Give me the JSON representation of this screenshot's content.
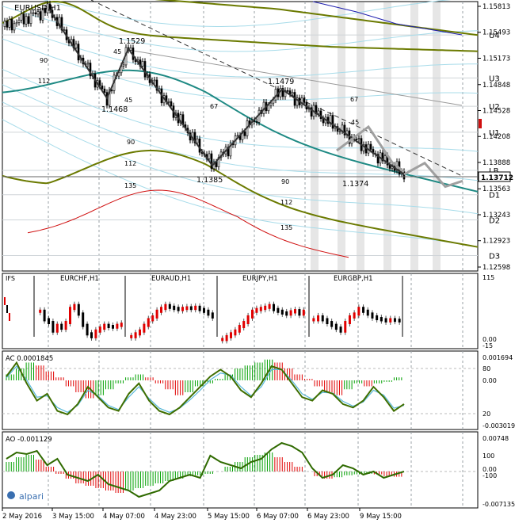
{
  "window": {
    "symbol_label": "EURUSD,H1",
    "brand": "alpari"
  },
  "colors": {
    "bull": "#00a000",
    "bear": "#e00000",
    "axis": "#000000",
    "grid": "#9aa0a6",
    "olive": "#6b7a00",
    "teal": "#1f8a84",
    "navy": "#2020b0",
    "red": "#d01010",
    "fan": "#a8dcea",
    "ghost": "#a0a0a0",
    "bandShade": "#e6e6e6"
  },
  "chart_data": [
    {
      "type": "line",
      "title": "EURUSD,H1",
      "ylim": [
        1.12598,
        1.15813
      ],
      "price_ticks": [
        "1.15813",
        "1.15493",
        "1.15173",
        "1.14848",
        "1.14528",
        "1.14208",
        "1.13888",
        "1.13563",
        "1.13243",
        "1.12923",
        "1.12598"
      ],
      "current_price": "1.13712",
      "level_labels": [
        {
          "label": "U4",
          "price": 1.1546
        },
        {
          "label": "U3",
          "price": 1.1493
        },
        {
          "label": "U2",
          "price": 1.1458
        },
        {
          "label": "U1",
          "price": 1.1426
        },
        {
          "label": "LB",
          "price": 1.1379
        },
        {
          "label": "D1",
          "price": 1.1349
        },
        {
          "label": "D2",
          "price": 1.1318
        },
        {
          "label": "D3",
          "price": 1.1274
        }
      ],
      "extremes": [
        {
          "label": "1.1529",
          "price": 1.1529
        },
        {
          "label": "1.1468",
          "price": 1.1468
        },
        {
          "label": "1.1479",
          "price": 1.1479
        },
        {
          "label": "1.1385",
          "price": 1.1385
        },
        {
          "label": "1.1374",
          "price": 1.1374
        }
      ],
      "fan_labels": [
        "90",
        "112",
        "45",
        "45",
        "67",
        "90",
        "112",
        "135",
        "67",
        "45",
        "90",
        "112",
        "135"
      ],
      "x_ticks": [
        "2 May 2016",
        "3 May 15:00",
        "4 May 07:00",
        "4 May 23:00",
        "5 May 15:00",
        "6 May 07:00",
        "6 May 23:00",
        "9 May 15:00"
      ],
      "zigzag": [
        1.1578,
        1.1468,
        1.1529,
        1.1385,
        1.1479,
        1.1374
      ],
      "projection": [
        1.1374,
        1.1388,
        1.1359,
        1.1366
      ]
    },
    {
      "type": "bar",
      "title": "IFS",
      "ylim": [
        0,
        115
      ],
      "ticks": [
        "115",
        "0.00",
        "-15"
      ],
      "panels": [
        {
          "name": "EURCHF,H1",
          "closes": [
            55,
            40,
            35,
            20,
            30,
            25,
            35,
            60,
            65,
            50,
            30,
            15,
            10,
            20,
            25,
            30,
            28,
            27,
            30,
            32
          ]
        },
        {
          "name": "EURAUD,H1",
          "closes": [
            10,
            15,
            20,
            30,
            40,
            45,
            55,
            60,
            65,
            62,
            60,
            58,
            60,
            61,
            60,
            62,
            58,
            55,
            50,
            45
          ]
        },
        {
          "name": "EURJPY,H1",
          "closes": [
            5,
            10,
            15,
            20,
            28,
            35,
            45,
            55,
            58,
            60,
            62,
            65,
            58,
            55,
            52,
            50,
            54,
            56,
            50,
            55
          ]
        },
        {
          "name": "EURGBP,H1",
          "closes": [
            40,
            45,
            40,
            35,
            30,
            25,
            20,
            35,
            45,
            50,
            60,
            55,
            50,
            45,
            42,
            40,
            38,
            40,
            39,
            38
          ]
        }
      ]
    },
    {
      "type": "bar",
      "title": "AC",
      "value_label": "AC 0.0001845",
      "ticks": [
        "0.001694",
        "80",
        "0.00",
        "20",
        "-0.003019"
      ],
      "histogram": [
        0.0004,
        0.0008,
        0.0012,
        0.001,
        0.0006,
        0.0002,
        -0.0004,
        -0.0008,
        -0.0012,
        -0.001,
        -0.0006,
        -0.0002,
        0.0002,
        0.0004,
        0.0002,
        -0.0002,
        -0.0006,
        -0.001,
        -0.0008,
        -0.0004,
        -0.0002,
        0.0001,
        0.0004,
        0.0008,
        0.001,
        0.0012,
        0.0014,
        0.0012,
        0.0008,
        0.0004,
        0.0001,
        -0.0004,
        -0.0008,
        -0.001,
        -0.0006,
        -0.0002,
        -0.0004,
        -0.0002,
        -0.0001,
        0.0002
      ],
      "osc_fast": [
        70,
        90,
        60,
        35,
        45,
        20,
        15,
        30,
        55,
        40,
        25,
        20,
        45,
        60,
        35,
        20,
        15,
        25,
        40,
        55,
        70,
        80,
        70,
        50,
        40,
        60,
        85,
        80,
        60,
        40,
        35,
        50,
        45,
        30,
        25,
        35,
        55,
        40,
        20,
        30
      ],
      "osc_slow": [
        68,
        85,
        65,
        40,
        42,
        25,
        18,
        28,
        50,
        42,
        28,
        22,
        40,
        55,
        38,
        24,
        18,
        24,
        36,
        50,
        65,
        75,
        72,
        55,
        42,
        55,
        80,
        80,
        64,
        45,
        37,
        47,
        46,
        34,
        27,
        33,
        50,
        43,
        24,
        28
      ]
    },
    {
      "type": "bar",
      "title": "AO",
      "value_label": "AO -0.001129",
      "ticks": [
        "0.00748",
        "100",
        "0.00",
        "-100",
        "-0.007135"
      ],
      "histogram": [
        0.002,
        0.003,
        0.0035,
        0.0025,
        0.001,
        -0.0005,
        -0.0015,
        -0.0025,
        -0.003,
        -0.0035,
        -0.004,
        -0.0045,
        -0.004,
        -0.0035,
        -0.003,
        -0.0025,
        -0.002,
        -0.0015,
        -0.001,
        -0.0008,
        -0.0005,
        0.0,
        0.001,
        0.002,
        0.003,
        0.0035,
        0.004,
        0.003,
        0.002,
        0.001,
        0.0,
        -0.001,
        -0.0015,
        -0.0012,
        -0.0008,
        -0.0006,
        -0.0005,
        -0.0006,
        -0.001,
        -0.0011
      ],
      "osc": [
        40,
        60,
        55,
        65,
        20,
        40,
        -10,
        -20,
        -30,
        -10,
        -40,
        -50,
        -60,
        -80,
        -70,
        -60,
        -30,
        -20,
        -10,
        -20,
        50,
        30,
        20,
        10,
        30,
        40,
        70,
        90,
        80,
        60,
        10,
        -20,
        -10,
        20,
        10,
        -10,
        0,
        -20,
        -10,
        0
      ]
    }
  ]
}
